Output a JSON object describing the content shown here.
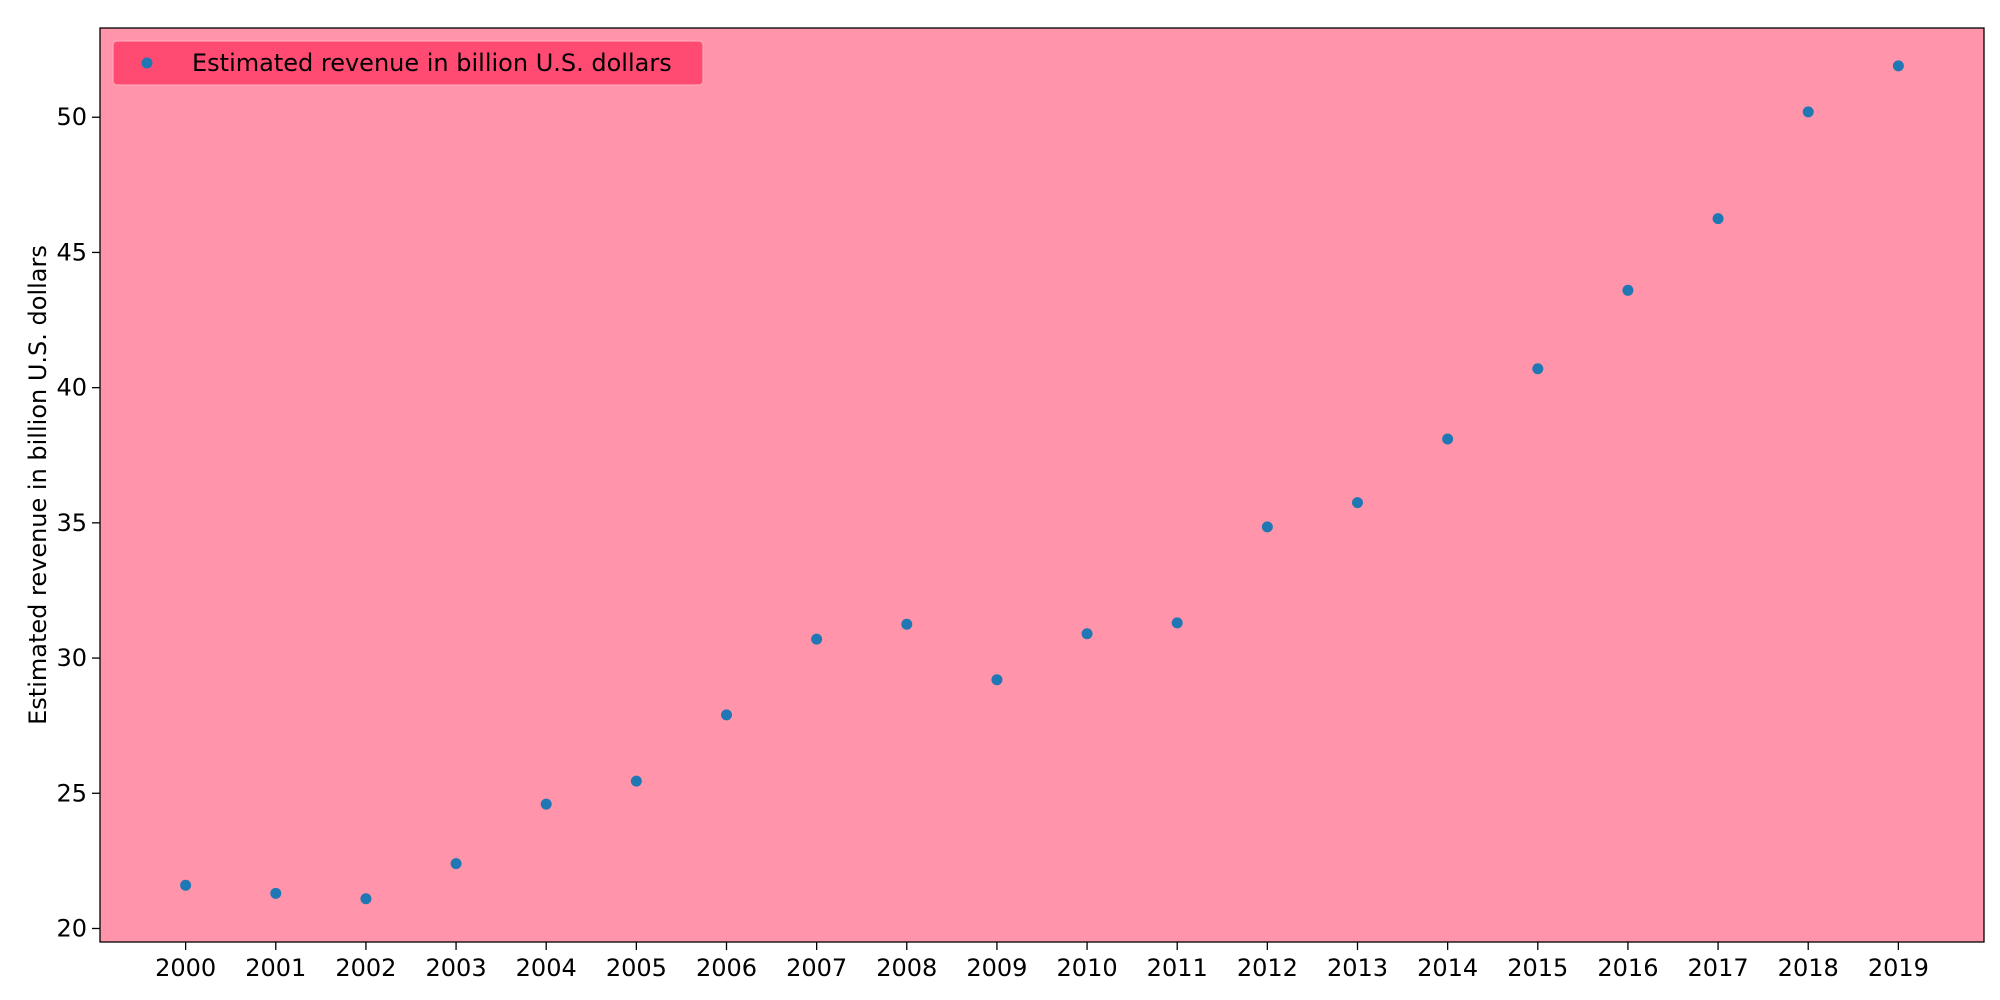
{
  "chart_data": {
    "type": "scatter",
    "title": "",
    "xlabel": "",
    "ylabel": "Estimated revenue in billion U.S. dollars",
    "x": [
      2000,
      2001,
      2002,
      2003,
      2004,
      2005,
      2006,
      2007,
      2008,
      2009,
      2010,
      2011,
      2012,
      2013,
      2014,
      2015,
      2016,
      2017,
      2018,
      2019
    ],
    "series": [
      {
        "name": "Estimated revenue in billion U.S. dollars",
        "values": [
          21.6,
          21.3,
          21.1,
          22.4,
          24.6,
          25.45,
          27.9,
          30.7,
          31.25,
          29.2,
          30.9,
          31.3,
          34.85,
          35.75,
          38.1,
          40.7,
          43.6,
          46.25,
          50.2,
          51.9
        ]
      }
    ],
    "xticks": [
      "2000",
      "2001",
      "2002",
      "2003",
      "2004",
      "2005",
      "2006",
      "2007",
      "2008",
      "2009",
      "2010",
      "2011",
      "2012",
      "2013",
      "2014",
      "2015",
      "2016",
      "2017",
      "2018",
      "2019"
    ],
    "yticks": [
      20,
      25,
      30,
      35,
      40,
      45,
      50
    ],
    "xlim": [
      1999.05,
      2019.95
    ],
    "ylim": [
      19.5,
      53.3
    ],
    "grid": false,
    "legend_position": "top-left",
    "colors": {
      "plot_background": "#ff94aa",
      "legend_background": "#ff4b72",
      "marker": "#1f77b4",
      "axes": "#000000",
      "page_background": "#ffffff"
    }
  }
}
